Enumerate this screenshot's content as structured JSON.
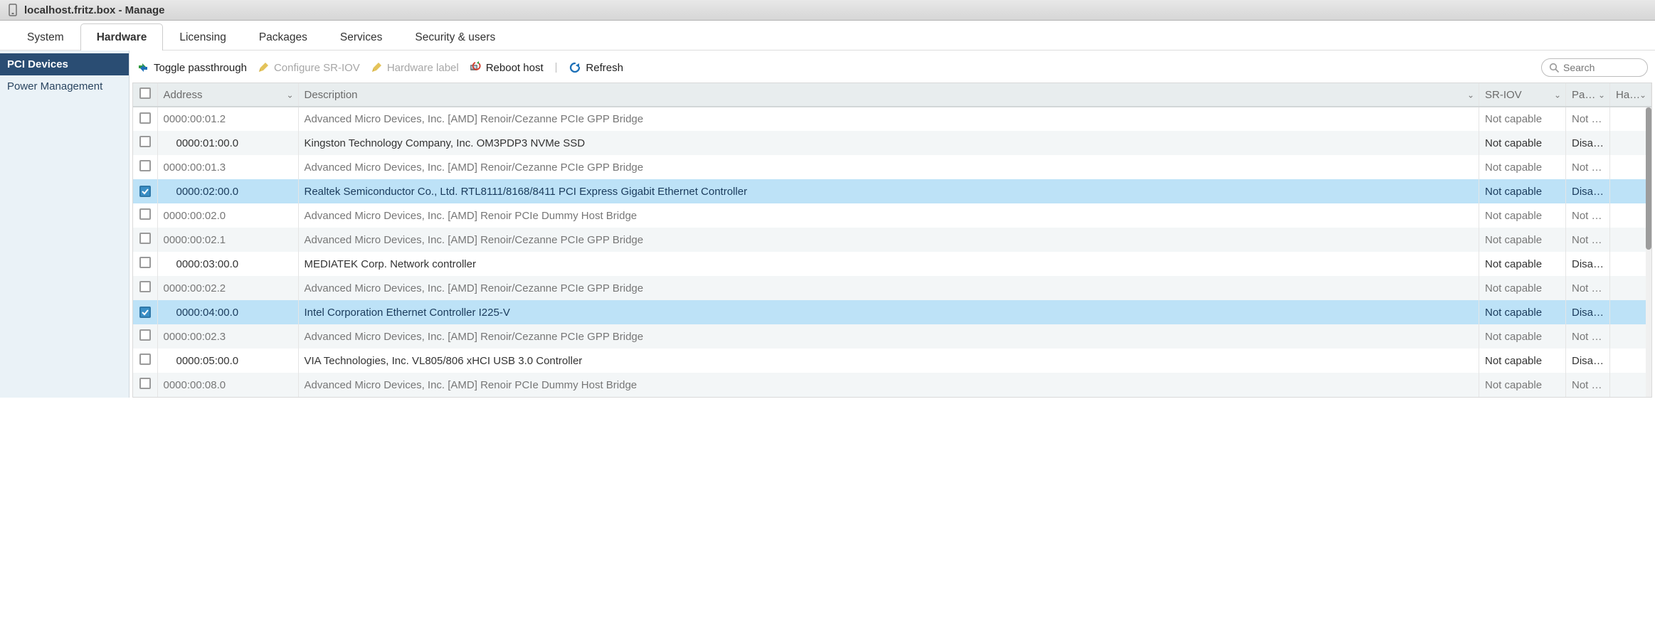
{
  "title_bar": {
    "text": "localhost.fritz.box - Manage"
  },
  "tabs": {
    "items": [
      {
        "label": "System"
      },
      {
        "label": "Hardware"
      },
      {
        "label": "Licensing"
      },
      {
        "label": "Packages"
      },
      {
        "label": "Services"
      },
      {
        "label": "Security & users"
      }
    ],
    "active_index": 1
  },
  "sidebar": {
    "items": [
      {
        "label": "PCI Devices"
      },
      {
        "label": "Power Management"
      }
    ],
    "active_index": 0
  },
  "toolbar": {
    "toggle_passthrough": "Toggle passthrough",
    "configure_sriov": "Configure SR-IOV",
    "hardware_label": "Hardware label",
    "reboot_host": "Reboot host",
    "refresh": "Refresh",
    "search_placeholder": "Search"
  },
  "table": {
    "columns": {
      "address": "Address",
      "description": "Description",
      "sriov": "SR-IOV",
      "passthrough": "Pa…",
      "hardware_label": "Ha…"
    },
    "rows": [
      {
        "checked": false,
        "indent": false,
        "address": "0000:00:01.2",
        "description": "Advanced Micro Devices, Inc. [AMD] Renoir/Cezanne PCIe GPP Bridge",
        "sriov": "Not capable",
        "passthrough": "Not …",
        "hardware_label": "",
        "muted": true
      },
      {
        "checked": false,
        "indent": true,
        "address": "0000:01:00.0",
        "description": "Kingston Technology Company, Inc. OM3PDP3 NVMe SSD",
        "sriov": "Not capable",
        "passthrough": "Disa…",
        "hardware_label": "",
        "muted": false
      },
      {
        "checked": false,
        "indent": false,
        "address": "0000:00:01.3",
        "description": "Advanced Micro Devices, Inc. [AMD] Renoir/Cezanne PCIe GPP Bridge",
        "sriov": "Not capable",
        "passthrough": "Not …",
        "hardware_label": "",
        "muted": true
      },
      {
        "checked": true,
        "indent": true,
        "address": "0000:02:00.0",
        "description": "Realtek Semiconductor Co., Ltd. RTL8111/8168/8411 PCI Express Gigabit Ethernet Controller",
        "sriov": "Not capable",
        "passthrough": "Disa…",
        "hardware_label": "",
        "muted": false
      },
      {
        "checked": false,
        "indent": false,
        "address": "0000:00:02.0",
        "description": "Advanced Micro Devices, Inc. [AMD] Renoir PCIe Dummy Host Bridge",
        "sriov": "Not capable",
        "passthrough": "Not …",
        "hardware_label": "",
        "muted": true
      },
      {
        "checked": false,
        "indent": false,
        "address": "0000:00:02.1",
        "description": "Advanced Micro Devices, Inc. [AMD] Renoir/Cezanne PCIe GPP Bridge",
        "sriov": "Not capable",
        "passthrough": "Not …",
        "hardware_label": "",
        "muted": true
      },
      {
        "checked": false,
        "indent": true,
        "address": "0000:03:00.0",
        "description": "MEDIATEK Corp. Network controller",
        "sriov": "Not capable",
        "passthrough": "Disa…",
        "hardware_label": "",
        "muted": false
      },
      {
        "checked": false,
        "indent": false,
        "address": "0000:00:02.2",
        "description": "Advanced Micro Devices, Inc. [AMD] Renoir/Cezanne PCIe GPP Bridge",
        "sriov": "Not capable",
        "passthrough": "Not …",
        "hardware_label": "",
        "muted": true
      },
      {
        "checked": true,
        "indent": true,
        "address": "0000:04:00.0",
        "description": "Intel Corporation Ethernet Controller I225-V",
        "sriov": "Not capable",
        "passthrough": "Disa…",
        "hardware_label": "",
        "muted": false
      },
      {
        "checked": false,
        "indent": false,
        "address": "0000:00:02.3",
        "description": "Advanced Micro Devices, Inc. [AMD] Renoir/Cezanne PCIe GPP Bridge",
        "sriov": "Not capable",
        "passthrough": "Not …",
        "hardware_label": "",
        "muted": true
      },
      {
        "checked": false,
        "indent": true,
        "address": "0000:05:00.0",
        "description": "VIA Technologies, Inc. VL805/806 xHCI USB 3.0 Controller",
        "sriov": "Not capable",
        "passthrough": "Disa…",
        "hardware_label": "",
        "muted": false
      },
      {
        "checked": false,
        "indent": false,
        "address": "0000:00:08.0",
        "description": "Advanced Micro Devices, Inc. [AMD] Renoir PCIe Dummy Host Bridge",
        "sriov": "Not capable",
        "passthrough": "Not …",
        "hardware_label": "",
        "muted": true
      }
    ]
  },
  "colors": {
    "sidebar_active_bg": "#2a4d73",
    "row_selected_bg": "#bde2f7",
    "header_bg": "#e8edee",
    "accent_blue": "#1d70b7"
  }
}
